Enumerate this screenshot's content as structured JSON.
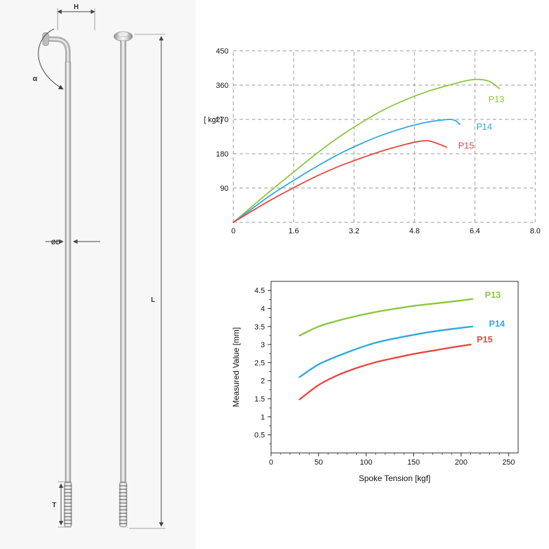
{
  "diagram": {
    "labels": {
      "head_height": "H",
      "bend_angle": "α",
      "diameter": "ØD",
      "length": "L",
      "thread_length": "T"
    }
  },
  "chart_data": [
    {
      "id": "chart-kgf",
      "type": "line",
      "title": "",
      "xlabel": "",
      "ylabel": "[ kgf ]",
      "xlim": [
        0,
        8
      ],
      "ylim": [
        0,
        450
      ],
      "x_ticks": [
        0,
        1.6,
        3.2,
        4.8,
        6.4,
        8
      ],
      "x_tick_labels": [
        "0",
        "1.6",
        "3.2",
        "4.8",
        "6.4",
        "8.0"
      ],
      "y_ticks": [
        90,
        180,
        270,
        360,
        450
      ],
      "y_tick_labels": [
        "90",
        "180",
        "270",
        "360",
        "450"
      ],
      "grid": "dashed",
      "legend_position": "end-of-line",
      "series": [
        {
          "name": "P13",
          "color": "#8dc63f",
          "points": [
            [
              0,
              0
            ],
            [
              0.5,
              42
            ],
            [
              1.0,
              84
            ],
            [
              1.6,
              132
            ],
            [
              2.2,
              180
            ],
            [
              2.8,
              224
            ],
            [
              3.4,
              262
            ],
            [
              4.0,
              296
            ],
            [
              4.6,
              323
            ],
            [
              5.2,
              345
            ],
            [
              5.8,
              362
            ],
            [
              6.2,
              372
            ],
            [
              6.5,
              375
            ],
            [
              6.8,
              369
            ],
            [
              7.05,
              351
            ]
          ]
        },
        {
          "name": "P14",
          "color": "#2fa8e1",
          "points": [
            [
              0,
              0
            ],
            [
              0.5,
              36
            ],
            [
              1.0,
              72
            ],
            [
              1.6,
              110
            ],
            [
              2.2,
              146
            ],
            [
              2.8,
              179
            ],
            [
              3.4,
              207
            ],
            [
              4.0,
              231
            ],
            [
              4.6,
              250
            ],
            [
              5.1,
              262
            ],
            [
              5.5,
              268
            ],
            [
              5.75,
              270
            ],
            [
              5.9,
              266
            ],
            [
              6.0,
              257
            ]
          ]
        },
        {
          "name": "P15",
          "color": "#e8463f",
          "points": [
            [
              0,
              0
            ],
            [
              0.5,
              30
            ],
            [
              1.0,
              59
            ],
            [
              1.6,
              91
            ],
            [
              2.2,
              121
            ],
            [
              2.8,
              147
            ],
            [
              3.4,
              169
            ],
            [
              4.0,
              189
            ],
            [
              4.5,
              203
            ],
            [
              4.9,
              212
            ],
            [
              5.15,
              214
            ],
            [
              5.4,
              207
            ],
            [
              5.65,
              197
            ]
          ]
        }
      ]
    },
    {
      "id": "chart-mm",
      "type": "line",
      "title": "",
      "xlabel": "Spoke Tension [kgf]",
      "ylabel": "Measured Value [mm]",
      "xlim": [
        0,
        260
      ],
      "ylim": [
        0,
        4.75
      ],
      "x_ticks": [
        0,
        50,
        100,
        150,
        200,
        250
      ],
      "x_tick_labels": [
        "0",
        "50",
        "100",
        "150",
        "200",
        "250"
      ],
      "x_minor_step": 10,
      "y_ticks": [
        0.5,
        1,
        1.5,
        2,
        2.5,
        3,
        3.5,
        4,
        4.5
      ],
      "y_tick_labels": [
        "0.5",
        "1",
        "1.5",
        "2",
        "2.5",
        "3",
        "3.5",
        "4",
        "4.5"
      ],
      "y_minor_step": 0.25,
      "grid": "none",
      "legend_position": "end-of-line",
      "series": [
        {
          "name": "P13",
          "color": "#8dc63f",
          "points": [
            [
              30,
              3.25
            ],
            [
              50,
              3.5
            ],
            [
              70,
              3.66
            ],
            [
              90,
              3.79
            ],
            [
              110,
              3.9
            ],
            [
              130,
              3.99
            ],
            [
              150,
              4.07
            ],
            [
              170,
              4.13
            ],
            [
              190,
              4.19
            ],
            [
              212,
              4.26
            ]
          ]
        },
        {
          "name": "P14",
          "color": "#2fa8e1",
          "points": [
            [
              30,
              2.1
            ],
            [
              50,
              2.45
            ],
            [
              70,
              2.68
            ],
            [
              90,
              2.88
            ],
            [
              110,
              3.05
            ],
            [
              130,
              3.17
            ],
            [
              150,
              3.27
            ],
            [
              170,
              3.36
            ],
            [
              190,
              3.43
            ],
            [
              212,
              3.5
            ]
          ]
        },
        {
          "name": "P15",
          "color": "#e8463f",
          "points": [
            [
              30,
              1.48
            ],
            [
              50,
              1.88
            ],
            [
              70,
              2.15
            ],
            [
              90,
              2.35
            ],
            [
              110,
              2.51
            ],
            [
              130,
              2.63
            ],
            [
              150,
              2.74
            ],
            [
              170,
              2.83
            ],
            [
              190,
              2.92
            ],
            [
              210,
              3.0
            ]
          ]
        }
      ]
    }
  ]
}
